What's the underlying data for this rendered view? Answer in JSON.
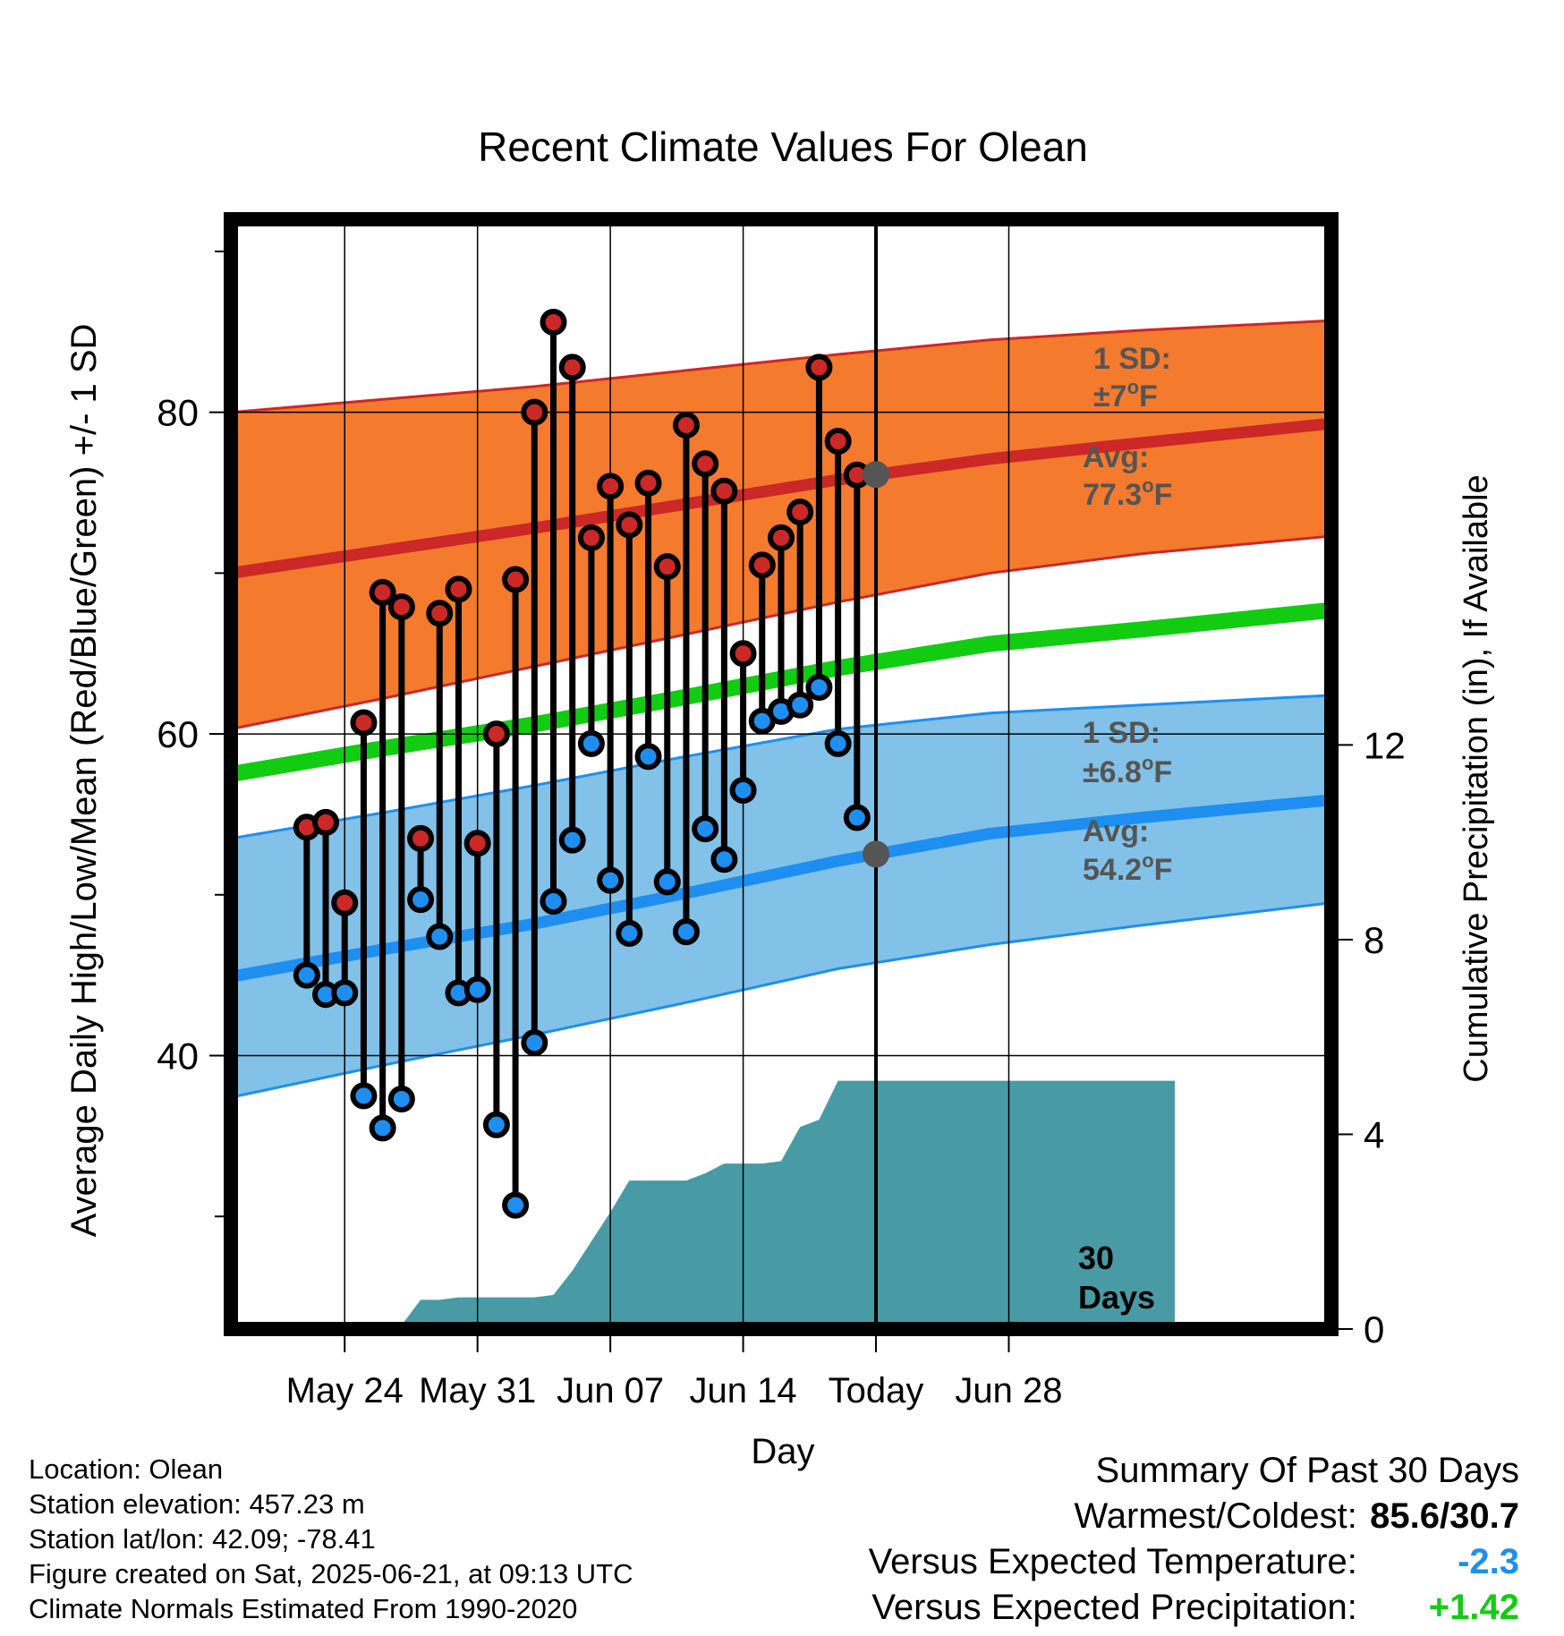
{
  "chart_data": {
    "type": "climate-temperature-range",
    "title": "Recent Climate Values For Olean",
    "xlabel": "Day",
    "ylabel": "Average Daily High/Low/Mean (Red/Blue/Green) +/- 1 SD",
    "y2label": "Cumulative Precipitation (in), If Available",
    "ylim": [
      23,
      92
    ],
    "y2lim": [
      0,
      22.8
    ],
    "xlim": [
      -6,
      52
    ],
    "yticks": [
      40,
      60,
      80
    ],
    "y2ticks": [
      0,
      4,
      8,
      12
    ],
    "xtick_positions": [
      0,
      7,
      14,
      21,
      28,
      35
    ],
    "xtick_labels": [
      "May 24",
      "May 31",
      "Jun 07",
      "Jun 14",
      "Today",
      "Jun 28"
    ],
    "grid": true,
    "today_x": 28,
    "day_offsets": [
      -2,
      -1,
      0,
      1,
      2,
      3,
      4,
      5,
      6,
      7,
      8,
      9,
      10,
      11,
      12,
      13,
      14,
      15,
      16,
      17,
      18,
      19,
      20,
      21,
      22,
      23,
      24,
      25,
      26,
      27
    ],
    "daily_high": [
      54.2,
      54.5,
      49.5,
      60.7,
      68.8,
      67.9,
      53.5,
      67.5,
      69.0,
      53.2,
      60.0,
      69.6,
      80.0,
      85.6,
      82.8,
      72.2,
      75.4,
      73.0,
      75.6,
      70.4,
      79.2,
      76.8,
      75.1,
      65.0,
      70.5,
      72.2,
      73.8,
      82.8,
      78.2,
      76.1
    ],
    "daily_low": [
      45.0,
      43.8,
      43.9,
      37.5,
      35.5,
      37.3,
      49.7,
      47.4,
      43.9,
      44.1,
      35.7,
      30.7,
      40.8,
      49.6,
      53.4,
      59.4,
      50.9,
      47.6,
      58.6,
      50.8,
      47.7,
      54.1,
      52.2,
      56.5,
      60.8,
      61.4,
      61.8,
      62.9,
      59.4,
      54.8
    ],
    "normals": {
      "x": [
        -6,
        2,
        10,
        18,
        26,
        34,
        42,
        52
      ],
      "high_mean": [
        70.0,
        71.4,
        72.8,
        74.3,
        75.8,
        77.1,
        78.1,
        79.3
      ],
      "high_upper": [
        80.0,
        80.8,
        81.6,
        82.6,
        83.6,
        84.5,
        85.1,
        85.7
      ],
      "high_lower": [
        60.3,
        62.2,
        64.2,
        66.2,
        68.2,
        70.0,
        71.2,
        72.3
      ],
      "low_mean": [
        44.9,
        46.6,
        48.2,
        50.1,
        52.1,
        53.8,
        54.8,
        55.9
      ],
      "low_upper": [
        53.5,
        55.1,
        56.8,
        58.6,
        60.3,
        61.3,
        61.8,
        62.4
      ],
      "low_lower": [
        37.4,
        39.4,
        41.3,
        43.3,
        45.4,
        46.9,
        48.1,
        49.5
      ],
      "mean": [
        57.5,
        59.1,
        60.6,
        62.3,
        64.1,
        65.6,
        66.5,
        67.7
      ]
    },
    "precip": {
      "x": [
        -3,
        -2,
        -1,
        0,
        1,
        2,
        3,
        4,
        5,
        6,
        7,
        8,
        9,
        10,
        11,
        12,
        13,
        14,
        15,
        16,
        17,
        18,
        19,
        20,
        21,
        22,
        23,
        24,
        25,
        26,
        27,
        28,
        34,
        38,
        40,
        42,
        43.75
      ],
      "y": [
        0,
        0.03,
        0.03,
        0.08,
        0.08,
        0.08,
        0.08,
        0.6,
        0.6,
        0.65,
        0.65,
        0.65,
        0.65,
        0.65,
        0.7,
        1.2,
        1.8,
        2.4,
        3.05,
        3.05,
        3.05,
        3.05,
        3.2,
        3.4,
        3.4,
        3.4,
        3.45,
        4.15,
        4.3,
        5.1,
        5.1,
        5.1,
        5.1,
        5.1,
        5.1,
        5.1,
        5.1
      ]
    },
    "annotations": {
      "high_sd": "1 SD:",
      "high_sd_value": "±7",
      "high_avg": "Avg:",
      "high_avg_value": "77.3",
      "low_sd": "1 SD:",
      "low_sd_value": "±6.8",
      "low_avg": "Avg:",
      "low_avg_value": "54.2",
      "degree_unit": "o",
      "temp_unit": "F",
      "days_line1": "30",
      "days_line2": "Days"
    },
    "colors": {
      "high_band": "#f47a2e",
      "high_line": "#cc2828",
      "low_band": "#82c1e8",
      "low_line": "#1e8ff0",
      "mean_line": "#12cc12",
      "precip_fill": "#489ba5",
      "high_marker": "#cc2828",
      "low_marker": "#1e8ff0",
      "annotation_text": "#555555",
      "avg_marker": "#555555"
    }
  },
  "footer": {
    "location": "Location: Olean",
    "elevation": "Station elevation: 457.23 m",
    "latlon": "Station lat/lon: 42.09; -78.41",
    "created": "Figure created on Sat, 2025-06-21, at 09:13 UTC",
    "normals": "Climate Normals Estimated From 1990-2020",
    "summary_title": "Summary Of Past 30 Days",
    "warmest_label": "Warmest/Coldest:",
    "warmest_value": "85.6/30.7",
    "temp_label": "Versus Expected Temperature:",
    "temp_value": "-2.3",
    "temp_color": "#1e8ff0",
    "precip_label": "Versus Expected Precipitation:",
    "precip_value": "+1.42",
    "precip_color": "#12cc12"
  }
}
